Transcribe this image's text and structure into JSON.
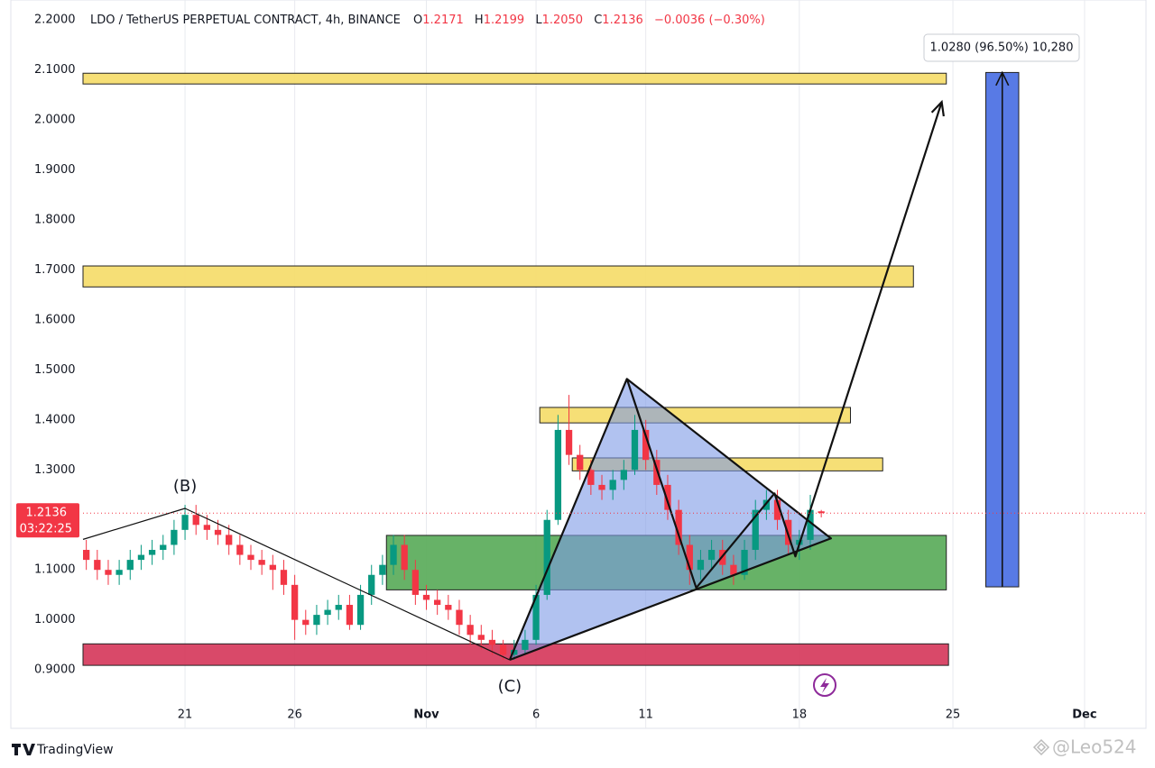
{
  "chart_data": {
    "type": "candlestick",
    "title": "LDO / TetherUS PERPETUAL CONTRACT, 4h, BINANCE",
    "header_keys": [
      "O",
      "H",
      "L",
      "C"
    ],
    "header_values": [
      "1.2171",
      "1.2199",
      "1.2050",
      "1.2136"
    ],
    "change": "−0.0036 (−0.30%)",
    "countdown": "03:22:25",
    "brand": "TradingView",
    "watermark": "@Leo524",
    "measure_label": "1.0280 (96.50%) 10,280",
    "wave_labels": [
      {
        "text": "(B)",
        "x": 0,
        "y": 1.223
      },
      {
        "text": "(C)",
        "x": 14.8,
        "y": 0.92
      }
    ],
    "up_color": "#089981",
    "down_color": "#f23645",
    "xlim": [
      -4.65,
      43.8
    ],
    "ylim": [
      0.783,
      2.24
    ],
    "xticks": [
      {
        "value": 0,
        "label": "21"
      },
      {
        "value": 5,
        "label": "26"
      },
      {
        "value": 11,
        "label": "Nov"
      },
      {
        "value": 16,
        "label": "6"
      },
      {
        "value": 21,
        "label": "11"
      },
      {
        "value": 28,
        "label": "18"
      },
      {
        "value": 35,
        "label": "25"
      },
      {
        "value": 41,
        "label": "Dec"
      }
    ],
    "yticks": [
      {
        "value": 0.9,
        "label": "0.9000"
      },
      {
        "value": 1.0,
        "label": "1.0000"
      },
      {
        "value": 1.1,
        "label": "1.1000"
      },
      {
        "value": 1.2,
        "label": "1.2000"
      },
      {
        "value": 1.3,
        "label": "1.3000"
      },
      {
        "value": 1.4,
        "label": "1.4000"
      },
      {
        "value": 1.5,
        "label": "1.5000"
      },
      {
        "value": 1.6,
        "label": "1.6000"
      },
      {
        "value": 1.7,
        "label": "1.7000"
      },
      {
        "value": 1.8,
        "label": "1.8000"
      },
      {
        "value": 1.9,
        "label": "1.9000"
      },
      {
        "value": 2.0,
        "label": "2.0000"
      },
      {
        "value": 2.1,
        "label": "2.1000"
      },
      {
        "value": 2.2,
        "label": "2.2000"
      }
    ],
    "grid": true,
    "x": [
      -4.5,
      -4,
      -3.5,
      -3,
      -2.5,
      -2,
      -1.5,
      -1,
      -0.5,
      0,
      0.5,
      1,
      1.5,
      2,
      2.5,
      3,
      3.5,
      4,
      4.5,
      5,
      5.5,
      6,
      6.5,
      7,
      7.5,
      8,
      8.5,
      9,
      9.5,
      10,
      10.5,
      11,
      11.5,
      12,
      12.5,
      13,
      13.5,
      14,
      14.5,
      15,
      15.5,
      16,
      16.5,
      17,
      17.5,
      18,
      18.5,
      19,
      19.5,
      20,
      20.5,
      21,
      21.5,
      22,
      22.5,
      23,
      23.5,
      24,
      24.5,
      25,
      25.5,
      26,
      26.5,
      27,
      27.5,
      28,
      28.5,
      29
    ],
    "open": [
      1.14,
      1.12,
      1.1,
      1.09,
      1.1,
      1.12,
      1.13,
      1.14,
      1.15,
      1.18,
      1.21,
      1.19,
      1.18,
      1.17,
      1.15,
      1.13,
      1.12,
      1.11,
      1.1,
      1.07,
      1.0,
      0.99,
      1.01,
      1.02,
      1.03,
      0.99,
      1.05,
      1.09,
      1.11,
      1.15,
      1.1,
      1.05,
      1.04,
      1.03,
      1.02,
      0.99,
      0.97,
      0.96,
      0.95,
      0.93,
      0.94,
      0.96,
      1.05,
      1.2,
      1.38,
      1.33,
      1.3,
      1.27,
      1.26,
      1.28,
      1.3,
      1.38,
      1.32,
      1.27,
      1.22,
      1.15,
      1.1,
      1.12,
      1.14,
      1.11,
      1.09,
      1.14,
      1.22,
      1.24,
      1.2,
      1.15,
      1.16,
      1.2171
    ],
    "high": [
      1.16,
      1.14,
      1.12,
      1.12,
      1.14,
      1.15,
      1.16,
      1.17,
      1.2,
      1.23,
      1.23,
      1.21,
      1.2,
      1.19,
      1.17,
      1.15,
      1.14,
      1.13,
      1.12,
      1.09,
      1.02,
      1.03,
      1.04,
      1.05,
      1.05,
      1.07,
      1.11,
      1.13,
      1.17,
      1.17,
      1.12,
      1.07,
      1.06,
      1.05,
      1.04,
      1.01,
      0.99,
      0.98,
      0.96,
      0.96,
      0.98,
      1.07,
      1.22,
      1.41,
      1.45,
      1.35,
      1.32,
      1.29,
      1.3,
      1.32,
      1.41,
      1.4,
      1.34,
      1.29,
      1.24,
      1.17,
      1.14,
      1.16,
      1.16,
      1.13,
      1.16,
      1.24,
      1.26,
      1.26,
      1.22,
      1.18,
      1.25,
      1.2199
    ],
    "low": [
      1.1,
      1.08,
      1.07,
      1.07,
      1.08,
      1.1,
      1.11,
      1.12,
      1.13,
      1.16,
      1.17,
      1.16,
      1.15,
      1.13,
      1.11,
      1.1,
      1.09,
      1.06,
      1.05,
      0.96,
      0.97,
      0.97,
      0.99,
      1.0,
      0.98,
      0.98,
      1.03,
      1.07,
      1.09,
      1.08,
      1.03,
      1.02,
      1.01,
      1.0,
      0.97,
      0.95,
      0.94,
      0.93,
      0.92,
      0.92,
      0.93,
      0.95,
      1.04,
      1.19,
      1.31,
      1.28,
      1.25,
      1.24,
      1.24,
      1.26,
      1.29,
      1.3,
      1.25,
      1.2,
      1.13,
      1.07,
      1.08,
      1.1,
      1.09,
      1.07,
      1.08,
      1.12,
      1.2,
      1.18,
      1.13,
      1.12,
      1.14,
      1.205
    ],
    "close": [
      1.12,
      1.1,
      1.09,
      1.1,
      1.12,
      1.13,
      1.14,
      1.15,
      1.18,
      1.21,
      1.19,
      1.18,
      1.17,
      1.15,
      1.13,
      1.12,
      1.11,
      1.1,
      1.07,
      1.0,
      0.99,
      1.01,
      1.02,
      1.03,
      0.99,
      1.05,
      1.09,
      1.11,
      1.15,
      1.1,
      1.05,
      1.04,
      1.03,
      1.02,
      0.99,
      0.97,
      0.96,
      0.95,
      0.93,
      0.94,
      0.96,
      1.05,
      1.2,
      1.38,
      1.33,
      1.3,
      1.27,
      1.26,
      1.28,
      1.3,
      1.38,
      1.32,
      1.27,
      1.22,
      1.15,
      1.1,
      1.12,
      1.14,
      1.11,
      1.09,
      1.14,
      1.22,
      1.24,
      1.2,
      1.15,
      1.16,
      1.22,
      1.2136
    ],
    "zones": [
      {
        "x0": -4.65,
        "x1": 34.7,
        "top": 2.0935,
        "bottom": 2.072,
        "color": "#f5dc6a"
      },
      {
        "x0": -4.65,
        "x1": 33.2,
        "top": 1.708,
        "bottom": 1.666,
        "color": "#f5dc6a"
      },
      {
        "x0": 16.17,
        "x1": 30.33,
        "top": 1.425,
        "bottom": 1.394,
        "color": "#f5dc6a"
      },
      {
        "x0": 17.65,
        "x1": 31.8,
        "top": 1.324,
        "bottom": 1.298,
        "color": "#f5dc6a"
      },
      {
        "x0": 9.18,
        "x1": 34.7,
        "top": 1.169,
        "bottom": 1.06,
        "color": "#5aab5a"
      },
      {
        "x0": -4.65,
        "x1": 34.8,
        "top": 0.952,
        "bottom": 0.909,
        "color": "#d63a5c"
      },
      {
        "x0": 36.5,
        "x1": 38.0,
        "top": 2.095,
        "bottom": 1.066,
        "color": "#4a6fe3"
      }
    ],
    "fills": [
      {
        "x": [
          14.8,
          20.14,
          29.44,
          23.3
        ],
        "y": [
          0.92,
          1.482,
          1.163,
          1.064
        ],
        "color": "#7d9ae6"
      }
    ],
    "lines": [
      {
        "x": [
          -4.65,
          0,
          14.8
        ],
        "y": [
          1.161,
          1.223,
          0.92
        ],
        "width": 1.2,
        "arrow": false
      },
      {
        "x": [
          14.8,
          20.14,
          23.3,
          26.87,
          27.82,
          34.49
        ],
        "y": [
          0.92,
          1.482,
          1.064,
          1.253,
          1.127,
          2.036
        ],
        "width": 2.2,
        "arrow": true
      },
      {
        "x": [
          20.14,
          29.44,
          14.8
        ],
        "y": [
          1.482,
          1.163,
          0.92
        ],
        "width": 2.2,
        "arrow": false
      },
      {
        "x": [
          37.25,
          37.25
        ],
        "y": [
          1.066,
          2.095
        ],
        "width": 1.6,
        "arrow": true
      }
    ]
  }
}
